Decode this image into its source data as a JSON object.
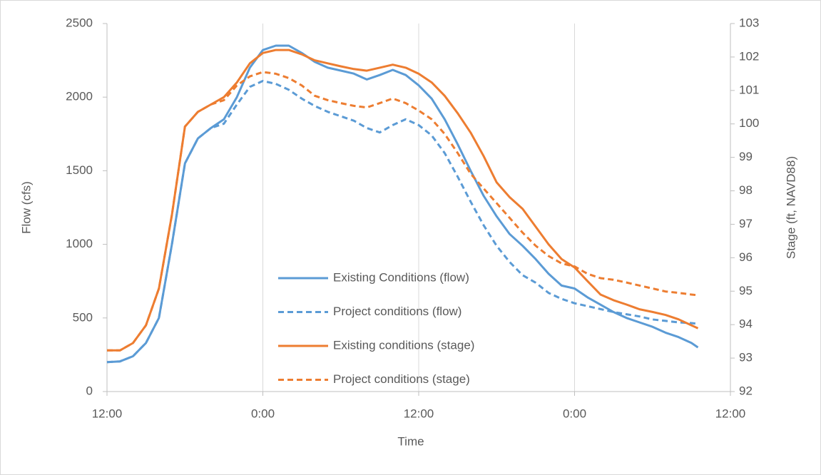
{
  "chart_data": {
    "type": "line",
    "xlabel": "Time",
    "ylabel": "Flow (cfs)",
    "y2label": "Stage (ft, NAVD88)",
    "x": [
      0,
      1,
      2,
      3,
      4,
      5,
      6,
      7,
      8,
      9,
      10,
      11,
      12,
      13,
      14,
      15,
      16,
      17,
      18,
      19,
      20,
      21,
      22,
      23,
      24,
      25,
      26,
      27,
      28,
      29,
      30,
      31,
      32,
      33,
      34,
      35,
      36,
      37,
      38,
      39,
      40,
      41,
      42,
      43,
      44,
      45,
      45.5
    ],
    "xlim": [
      0,
      48
    ],
    "xticks": [
      {
        "value": 0,
        "label": "12:00"
      },
      {
        "value": 12,
        "label": "0:00"
      },
      {
        "value": 24,
        "label": "12:00"
      },
      {
        "value": 36,
        "label": "0:00"
      },
      {
        "value": 48,
        "label": "12:00"
      }
    ],
    "ylim": [
      0,
      2500
    ],
    "yticks": [
      0,
      500,
      1000,
      1500,
      2000,
      2500
    ],
    "y2lim": [
      92,
      103
    ],
    "y2ticks": [
      92,
      93,
      94,
      95,
      96,
      97,
      98,
      99,
      100,
      101,
      102,
      103
    ],
    "xgrid": true,
    "series": [
      {
        "name": "Existing Conditions (flow)",
        "color": "#5b9bd5",
        "dashed": false,
        "values": [
          200,
          205,
          240,
          330,
          500,
          1000,
          1550,
          1720,
          1790,
          1850,
          2000,
          2200,
          2320,
          2350,
          2350,
          2300,
          2240,
          2200,
          2180,
          2160,
          2120,
          2150,
          2185,
          2150,
          2080,
          1990,
          1850,
          1680,
          1500,
          1330,
          1190,
          1070,
          990,
          900,
          800,
          720,
          700,
          640,
          590,
          540,
          500,
          470,
          440,
          400,
          370,
          330,
          300
        ]
      },
      {
        "name": "Project conditions (flow)",
        "color": "#5b9bd5",
        "dashed": true,
        "values": [
          200,
          205,
          240,
          330,
          500,
          1000,
          1550,
          1720,
          1790,
          1820,
          1950,
          2070,
          2110,
          2090,
          2050,
          1990,
          1940,
          1900,
          1870,
          1840,
          1790,
          1760,
          1810,
          1850,
          1810,
          1740,
          1620,
          1460,
          1290,
          1130,
          990,
          880,
          790,
          740,
          670,
          630,
          600,
          580,
          560,
          540,
          525,
          510,
          490,
          480,
          470,
          465,
          460
        ]
      },
      {
        "name": "Existing conditions (stage)",
        "color": "#ed7d31",
        "dashed": false,
        "axis": "y2",
        "values": [
          93.23,
          93.23,
          93.45,
          93.98,
          95.08,
          97.28,
          99.92,
          100.36,
          100.58,
          100.8,
          101.24,
          101.81,
          102.12,
          102.21,
          102.21,
          102.08,
          101.9,
          101.81,
          101.72,
          101.64,
          101.59,
          101.68,
          101.77,
          101.68,
          101.5,
          101.24,
          100.84,
          100.32,
          99.74,
          99.04,
          98.25,
          97.81,
          97.46,
          96.93,
          96.4,
          95.96,
          95.71,
          95.3,
          94.9,
          94.73,
          94.6,
          94.46,
          94.38,
          94.29,
          94.16,
          93.98,
          93.89
        ]
      },
      {
        "name": "Project conditions (stage)",
        "color": "#ed7d31",
        "dashed": true,
        "axis": "y2",
        "values": [
          93.23,
          93.23,
          93.45,
          93.98,
          95.08,
          97.28,
          99.92,
          100.36,
          100.58,
          100.71,
          101.15,
          101.42,
          101.55,
          101.5,
          101.37,
          101.15,
          100.84,
          100.71,
          100.62,
          100.54,
          100.49,
          100.62,
          100.76,
          100.62,
          100.4,
          100.14,
          99.7,
          99.13,
          98.51,
          98.07,
          97.63,
          97.19,
          96.75,
          96.36,
          96.05,
          95.83,
          95.74,
          95.52,
          95.39,
          95.34,
          95.26,
          95.17,
          95.08,
          94.99,
          94.95,
          94.9,
          94.88
        ]
      }
    ]
  }
}
